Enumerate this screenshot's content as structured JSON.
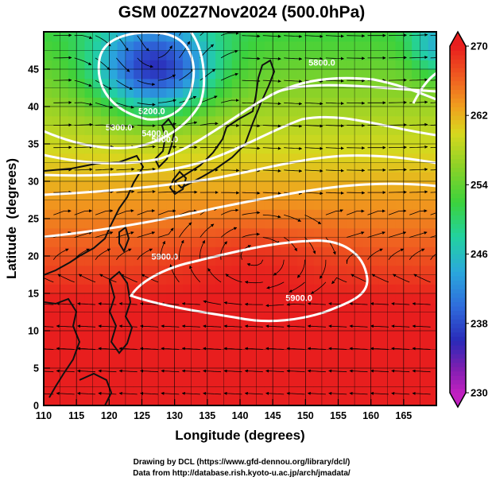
{
  "colors": {
    "contour": "#ffffff",
    "coast": "#111111",
    "grid": "#000000",
    "streamline": "#000000"
  },
  "chart_data": {
    "type": "heatmap",
    "title": "GSM 00Z27Nov2024 (500.0hPa)",
    "xlabel": "Longitude (degrees)",
    "ylabel": "Latitude  (degrees)",
    "xlim": [
      110,
      170
    ],
    "ylim": [
      0,
      50
    ],
    "x_ticks": [
      "110",
      "115",
      "120",
      "125",
      "130",
      "135",
      "140",
      "145",
      "150",
      "155",
      "160",
      "165"
    ],
    "y_ticks": [
      "0",
      "5",
      "10",
      "15",
      "20",
      "25",
      "30",
      "35",
      "40",
      "45"
    ],
    "grid": true,
    "shaded_variable_range": [
      230,
      270
    ],
    "colorbar": {
      "ticks": [
        "270",
        "262",
        "254",
        "246",
        "238",
        "230"
      ],
      "stops": [
        {
          "value": 230,
          "color": "#c020c0"
        },
        {
          "value": 233,
          "color": "#7a1fb0"
        },
        {
          "value": 236,
          "color": "#2a2ab8"
        },
        {
          "value": 240,
          "color": "#2f6cdc"
        },
        {
          "value": 244,
          "color": "#2aa8dc"
        },
        {
          "value": 248,
          "color": "#22d2a0"
        },
        {
          "value": 252,
          "color": "#3cd23c"
        },
        {
          "value": 256,
          "color": "#8ad228"
        },
        {
          "value": 260,
          "color": "#d8d81e"
        },
        {
          "value": 263,
          "color": "#f0a01e"
        },
        {
          "value": 266,
          "color": "#f06420"
        },
        {
          "value": 270,
          "color": "#e81e1e"
        }
      ],
      "placement": "right"
    },
    "features": {
      "cold_low": {
        "lon": 127,
        "lat": 45,
        "value": 233
      },
      "high": {
        "lon": 142,
        "lat": 20,
        "value": 268
      }
    },
    "contour_labels": [
      {
        "text": "5200.0",
        "lon": 126.5,
        "lat": 39.0
      },
      {
        "text": "5300.0",
        "lon": 121.5,
        "lat": 36.8
      },
      {
        "text": "5400.0",
        "lon": 127.0,
        "lat": 36.0
      },
      {
        "text": "5500.0",
        "lon": 128.5,
        "lat": 35.2
      },
      {
        "text": "5800.0",
        "lon": 152.5,
        "lat": 45.5
      },
      {
        "text": "5900.0",
        "lon": 128.5,
        "lat": 19.5
      },
      {
        "text": "5900.0",
        "lon": 149.0,
        "lat": 14.0
      }
    ]
  },
  "credits": {
    "line1": "Drawing by DCL (https://www.gfd-dennou.org/library/dcl/)",
    "line2": "Data from http://database.rish.kyoto-u.ac.jp/arch/jmadata/"
  }
}
